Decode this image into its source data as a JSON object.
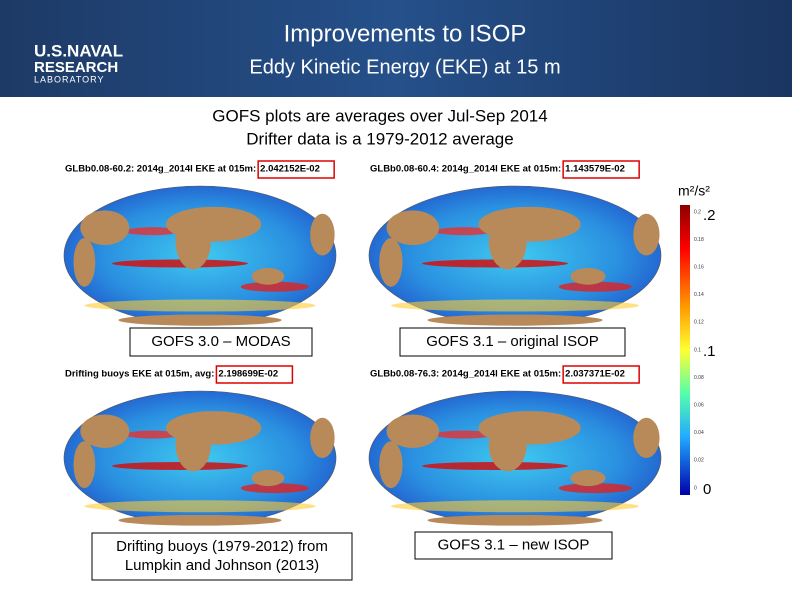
{
  "header": {
    "title": "Improvements to ISOP",
    "subtitle": "Eddy Kinetic Energy (EKE) at 15 m",
    "logo": [
      "U.S.NAVAL",
      "RESEARCH",
      "LABORATORY"
    ]
  },
  "notes": [
    "GOFS plots are averages over Jul-Sep 2014",
    "Drifter data is a 1979-2012 average"
  ],
  "panels": [
    {
      "title": "GLBb0.08-60.2: 2014g_2014l EKE at 015m:",
      "value": "2.042152E-02",
      "caption": [
        "GOFS 3.0 – MODAS"
      ]
    },
    {
      "title": "GLBb0.08-60.4: 2014g_2014l EKE at 015m:",
      "value": "1.143579E-02",
      "caption": [
        "GOFS 3.1 – original ISOP"
      ]
    },
    {
      "title": "Drifting buoys EKE at 015m, avg:",
      "value": "2.198699E-02",
      "caption": [
        "Drifting buoys (1979-2012) from",
        "Lumpkin and Johnson (2013)"
      ]
    },
    {
      "title": "GLBb0.08-76.3: 2014g_2014l EKE at 015m:",
      "value": "2.037371E-02",
      "caption": [
        "GOFS 3.1 – new ISOP"
      ]
    }
  ],
  "colorbar": {
    "unit": "m²/s²",
    "labels": [
      ".2",
      ".1",
      "0"
    ],
    "ticks": [
      "0.2",
      "0.18",
      "0.16",
      "0.14",
      "0.12",
      "0.1",
      "0.08",
      "0.06",
      "0.04",
      "0.02",
      "0"
    ]
  }
}
